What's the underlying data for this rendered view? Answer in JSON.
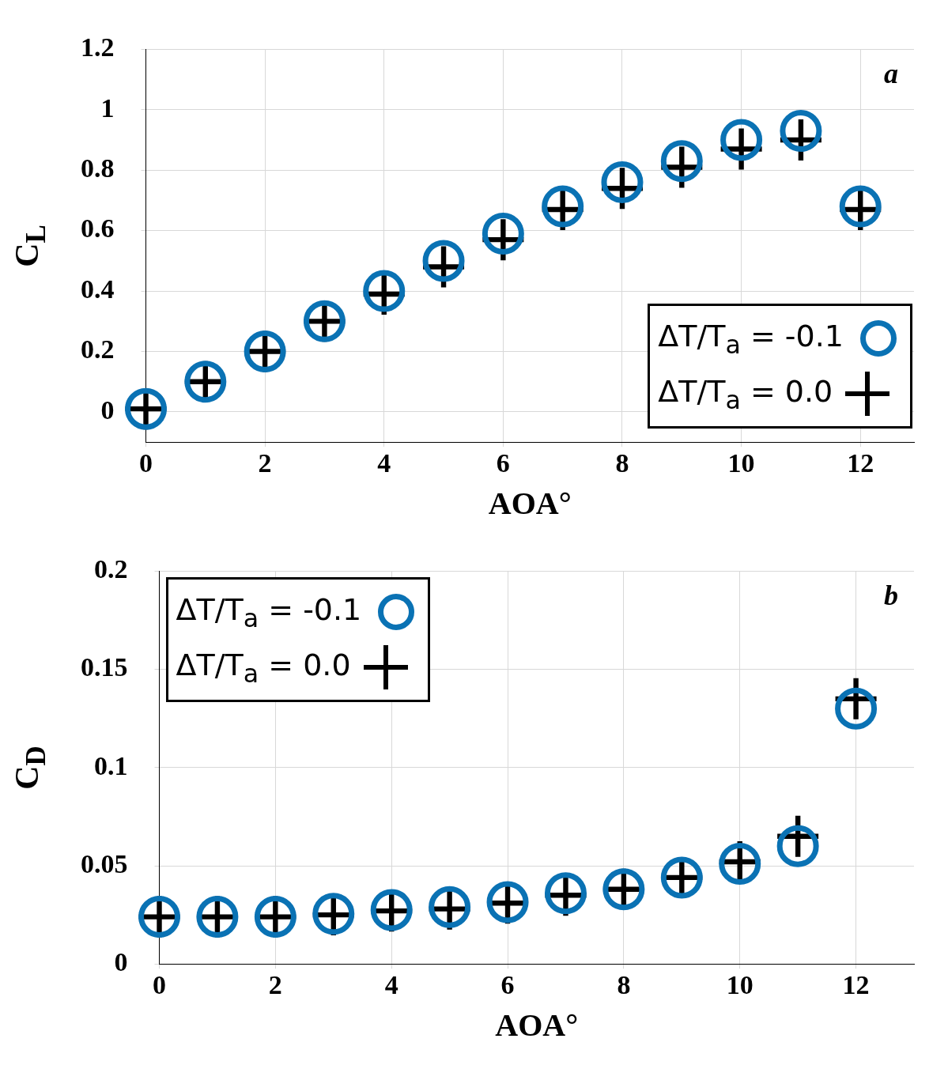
{
  "chart_data": [
    {
      "type": "scatter",
      "xlabel": "AOA°",
      "ylabel": "C$_{L}$",
      "annotations": [
        "a"
      ],
      "x": [
        0,
        1,
        2,
        3,
        4,
        5,
        6,
        7,
        8,
        9,
        10,
        11,
        12
      ],
      "xlim": [
        0,
        12.9
      ],
      "xticks": [
        0,
        2,
        4,
        6,
        8,
        10,
        12
      ],
      "ylim": [
        -0.1,
        1.2
      ],
      "yticks": [
        0,
        0.2,
        0.4,
        0.6,
        0.8,
        1,
        1.2
      ],
      "grid": true,
      "legend": "bottom right",
      "series": [
        {
          "name": "ΔT/T$_{a}$ = -0.1",
          "color": "#0a72b4",
          "marker": "circle",
          "values": [
            0.01,
            0.1,
            0.2,
            0.3,
            0.4,
            0.5,
            0.59,
            0.68,
            0.76,
            0.83,
            0.9,
            0.93,
            0.68
          ]
        },
        {
          "name": "ΔT/T$_{a}$ = 0.0",
          "color": "#000000",
          "marker": "cross",
          "values": [
            0.01,
            0.1,
            0.2,
            0.3,
            0.39,
            0.48,
            0.57,
            0.67,
            0.74,
            0.81,
            0.87,
            0.9,
            0.67
          ]
        }
      ]
    },
    {
      "type": "scatter",
      "xlabel": "AOA°",
      "ylabel": "C$_{D}$",
      "annotations": [
        "b"
      ],
      "x": [
        0,
        1,
        2,
        3,
        4,
        5,
        6,
        7,
        8,
        9,
        10,
        11,
        12
      ],
      "xlim": [
        0,
        13
      ],
      "xticks": [
        0,
        2,
        4,
        6,
        8,
        10,
        12
      ],
      "ylim": [
        0,
        0.2
      ],
      "yticks": [
        0,
        0.05,
        0.1,
        0.15,
        0.2
      ],
      "grid": true,
      "legend": "top left",
      "series": [
        {
          "name": "ΔT/T$_{a}$ = -0.1",
          "color": "#0a72b4",
          "marker": "circle",
          "values": [
            0.024,
            0.024,
            0.024,
            0.0255,
            0.0275,
            0.029,
            0.0315,
            0.036,
            0.038,
            0.044,
            0.051,
            0.06,
            0.13
          ]
        },
        {
          "name": "ΔT/T$_{a}$ = 0.0",
          "color": "#000000",
          "marker": "cross",
          "values": [
            0.024,
            0.024,
            0.024,
            0.025,
            0.027,
            0.028,
            0.031,
            0.035,
            0.038,
            0.044,
            0.052,
            0.065,
            0.135
          ]
        }
      ]
    }
  ]
}
